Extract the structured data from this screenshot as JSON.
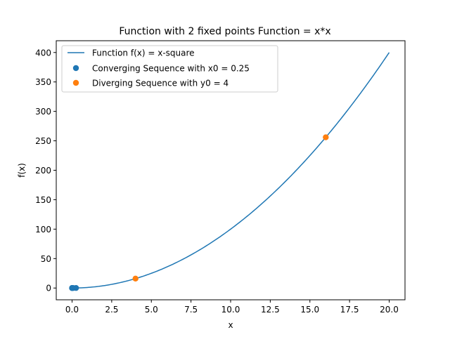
{
  "chart_data": {
    "type": "line",
    "title": "Function with 2 fixed points Function = x*x",
    "xlabel": "x",
    "ylabel": "f(x)",
    "xlim": [
      -0.997,
      20.997
    ],
    "ylim": [
      -19.99,
      419.99
    ],
    "x_ticks": [
      0,
      2.5,
      5,
      7.5,
      10,
      12.5,
      15,
      17.5,
      20
    ],
    "x_tick_labels": [
      "0.0",
      "2.5",
      "5.0",
      "7.5",
      "10.0",
      "12.5",
      "15.0",
      "17.5",
      "20.0"
    ],
    "y_ticks": [
      0,
      50,
      100,
      150,
      200,
      250,
      300,
      350,
      400
    ],
    "y_tick_labels": [
      "0",
      "50",
      "100",
      "150",
      "200",
      "250",
      "300",
      "350",
      "400"
    ],
    "grid": false,
    "legend_position": "upper-left",
    "series": [
      {
        "name": "Function f(x) = x-square",
        "kind": "line",
        "function": "x^2",
        "x_range": [
          0.06,
          20
        ],
        "color": "#1f77b4"
      },
      {
        "name": "Converging Sequence with x0 = 0.25",
        "kind": "scatter",
        "x": [
          0.25,
          0.0625,
          0.00390625,
          1.52588e-05
        ],
        "y": [
          0.0625,
          0.00390625,
          1.52588e-05,
          0.0
        ],
        "color": "#1f77b4"
      },
      {
        "name": "Diverging Sequence with y0 = 4",
        "kind": "scatter",
        "x": [
          4,
          16
        ],
        "y": [
          16,
          256
        ],
        "color": "#ff7f0e"
      }
    ]
  }
}
